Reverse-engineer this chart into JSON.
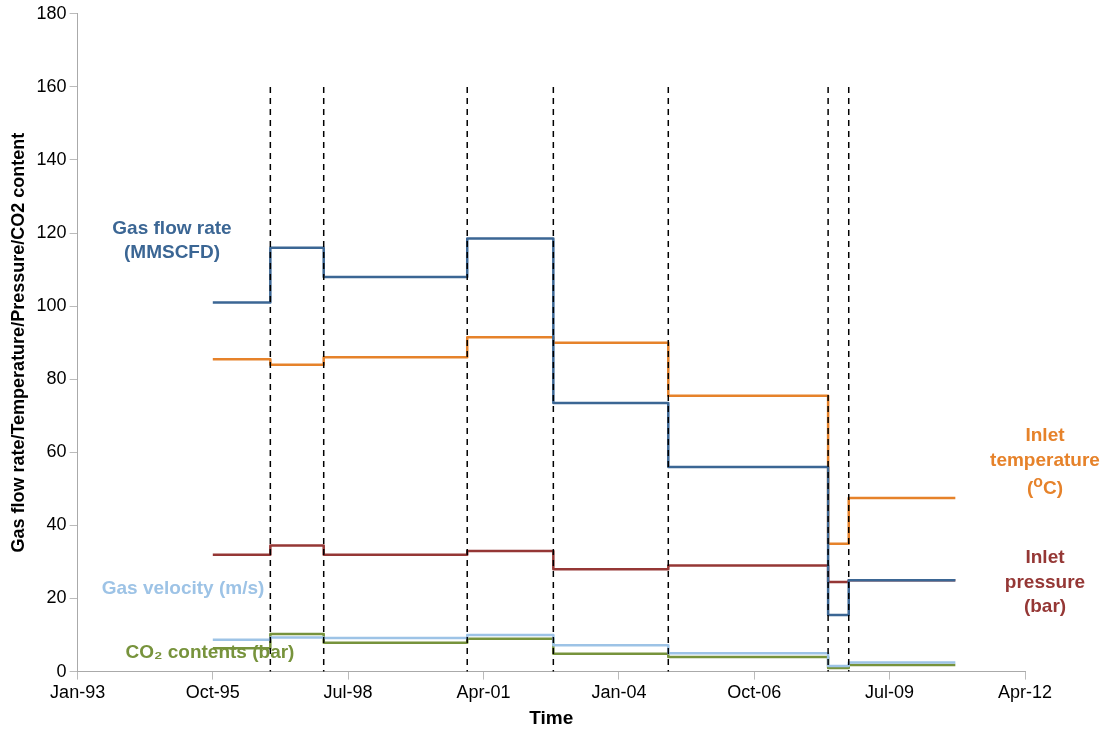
{
  "chart_data": {
    "type": "step",
    "xlabel": "Time",
    "ylabel": "Gas flow rate/Temperature/Pressure/CO2 content",
    "x": [
      "1995-10",
      "1996-12",
      "1998-01",
      "2000-12",
      "2002-09",
      "2005-01",
      "2008-04",
      "2008-09",
      "2010-11"
    ],
    "series": [
      {
        "name": "Gas flow rate (MMSCFD)",
        "color": "#3b6694",
        "values": [
          101,
          116,
          108,
          118.5,
          73.5,
          56,
          15.5,
          25,
          25
        ]
      },
      {
        "name": "Inlet temperature ($^{o}$C)",
        "color": "#e6822a",
        "values": [
          85.5,
          84,
          86,
          91.5,
          90,
          75.5,
          35,
          47.5,
          47.5
        ]
      },
      {
        "name": "Inlet pressure (bar)",
        "color": "#953735",
        "values": [
          32,
          34.5,
          32,
          33,
          28,
          29,
          24.5,
          25,
          25
        ]
      },
      {
        "name": "Gas velocity (m/s)",
        "color": "#9dc3e6",
        "values": [
          8.7,
          9.3,
          9.2,
          10,
          7.2,
          5,
          1.5,
          2.5,
          2.5
        ]
      },
      {
        "name": "CO₂ contents (bar)",
        "color": "#77933c",
        "values": [
          6.4,
          10.3,
          7.9,
          9,
          4.9,
          4,
          1,
          1.8,
          1.8
        ]
      }
    ],
    "xlim": [
      "1993-01",
      "2012-04"
    ],
    "xticks": [
      {
        "value": "1993-01",
        "label": "Jan-93"
      },
      {
        "value": "1995-10",
        "label": "Oct-95"
      },
      {
        "value": "1998-07",
        "label": "Jul-98"
      },
      {
        "value": "2001-04",
        "label": "Apr-01"
      },
      {
        "value": "2004-01",
        "label": "Jan-04"
      },
      {
        "value": "2006-10",
        "label": "Oct-06"
      },
      {
        "value": "2009-07",
        "label": "Jul-09"
      },
      {
        "value": "2012-04",
        "label": "Apr-12"
      }
    ],
    "ylim": [
      0,
      180
    ],
    "yticks": [
      0,
      20,
      40,
      60,
      80,
      100,
      120,
      140,
      160,
      180
    ],
    "ref_lines": [
      {
        "axis": "x",
        "value": "1996-12",
        "color": "#000000",
        "line_style": "dashed"
      },
      {
        "axis": "x",
        "value": "1998-01",
        "color": "#000000",
        "line_style": "dashed"
      },
      {
        "axis": "x",
        "value": "2000-12",
        "color": "#000000",
        "line_style": "dashed"
      },
      {
        "axis": "x",
        "value": "2002-09",
        "color": "#000000",
        "line_style": "dashed"
      },
      {
        "axis": "x",
        "value": "2005-01",
        "color": "#000000",
        "line_style": "dashed"
      },
      {
        "axis": "x",
        "value": "2008-04",
        "color": "#000000",
        "line_style": "dashed"
      },
      {
        "axis": "x",
        "value": "2008-09",
        "color": "#000000",
        "line_style": "dashed"
      }
    ],
    "grid": false,
    "legend": false,
    "marker": "none",
    "line_style": "solid"
  }
}
